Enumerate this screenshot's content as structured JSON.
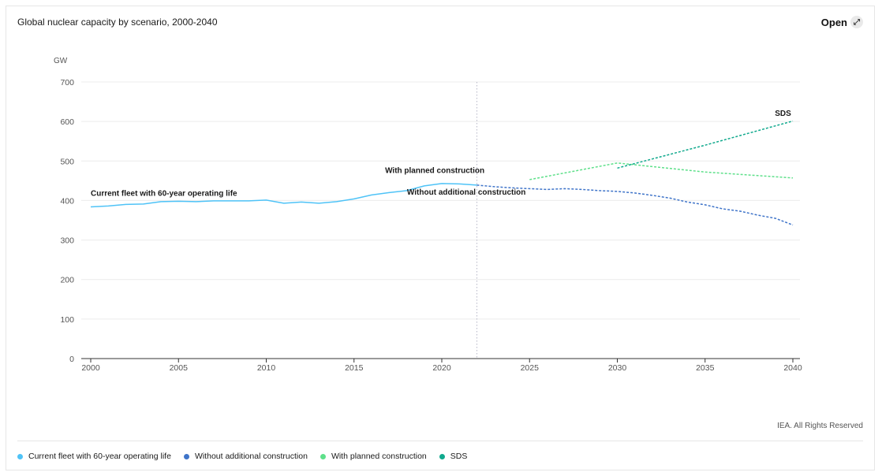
{
  "header": {
    "title": "Global nuclear capacity by scenario, 2000-2040",
    "open_label": "Open",
    "open_icon": "expand-arrow-icon"
  },
  "footer": {
    "credit": "IEA. All Rights Reserved"
  },
  "chart_data": {
    "type": "line",
    "ylabel": "GW",
    "xlabel": "",
    "xlim": [
      2000,
      2040
    ],
    "ylim": [
      0,
      700
    ],
    "x_ticks": [
      2000,
      2005,
      2010,
      2015,
      2020,
      2025,
      2030,
      2035,
      2040
    ],
    "y_ticks": [
      0,
      100,
      200,
      300,
      400,
      500,
      600,
      700
    ],
    "grid": true,
    "reference_line_x": 2022,
    "series": [
      {
        "name": "Current fleet with 60-year operating life",
        "color": "#4fc3f7",
        "style": "solid",
        "points": [
          [
            2000,
            384
          ],
          [
            2001,
            386
          ],
          [
            2002,
            390
          ],
          [
            2003,
            391
          ],
          [
            2004,
            397
          ],
          [
            2005,
            398
          ],
          [
            2006,
            397
          ],
          [
            2007,
            399
          ],
          [
            2008,
            399
          ],
          [
            2009,
            399
          ],
          [
            2010,
            401
          ],
          [
            2011,
            393
          ],
          [
            2012,
            396
          ],
          [
            2013,
            393
          ],
          [
            2014,
            397
          ],
          [
            2015,
            404
          ],
          [
            2016,
            414
          ],
          [
            2017,
            420
          ],
          [
            2018,
            425
          ],
          [
            2019,
            437
          ],
          [
            2020,
            443
          ],
          [
            2021,
            442
          ],
          [
            2022,
            439
          ]
        ]
      },
      {
        "name": "Without additional construction",
        "color": "#3f74c9",
        "style": "dashed",
        "points": [
          [
            2022,
            439
          ],
          [
            2023,
            435
          ],
          [
            2024,
            432
          ],
          [
            2025,
            430
          ],
          [
            2026,
            428
          ],
          [
            2027,
            430
          ],
          [
            2028,
            428
          ],
          [
            2029,
            425
          ],
          [
            2030,
            423
          ],
          [
            2031,
            419
          ],
          [
            2032,
            413
          ],
          [
            2033,
            406
          ],
          [
            2034,
            396
          ],
          [
            2035,
            389
          ],
          [
            2036,
            379
          ],
          [
            2037,
            373
          ],
          [
            2038,
            363
          ],
          [
            2039,
            355
          ],
          [
            2040,
            338
          ]
        ]
      },
      {
        "name": "With planned construction",
        "color": "#5ee08a",
        "style": "dashed",
        "points": [
          [
            2025,
            453
          ],
          [
            2030,
            495
          ],
          [
            2035,
            472
          ],
          [
            2040,
            457
          ]
        ]
      },
      {
        "name": "SDS",
        "color": "#10a98d",
        "style": "dashed",
        "points": [
          [
            2030,
            482
          ],
          [
            2035,
            540
          ],
          [
            2040,
            601
          ]
        ]
      }
    ],
    "annotations": [
      {
        "text": "Current fleet with 60-year operating life",
        "x": 2000,
        "y": 412,
        "anchor": "start"
      },
      {
        "text": "With planned construction",
        "x": 2019.6,
        "y": 470,
        "anchor": "middle"
      },
      {
        "text": "Without additional construction",
        "x": 2021.4,
        "y": 415,
        "anchor": "middle"
      },
      {
        "text": "SDS",
        "x": 2039.9,
        "y": 614,
        "anchor": "end"
      }
    ]
  }
}
